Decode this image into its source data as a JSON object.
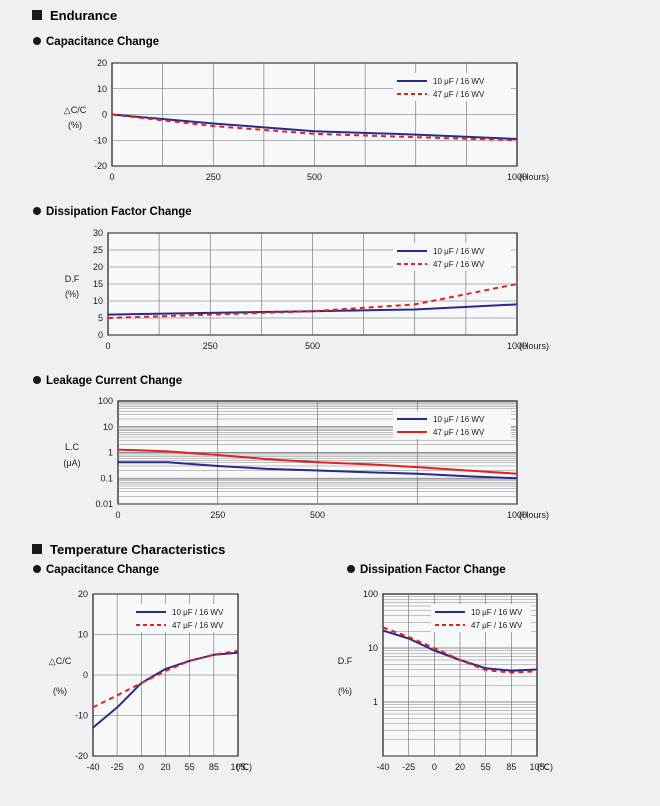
{
  "sections": {
    "endurance": "Endurance",
    "temperature": "Temperature Characteristics"
  },
  "colors": {
    "series1": "#2a2a8c",
    "series2": "#e0231e",
    "grid": "#6a6a6a",
    "bg": "#eef0f3"
  },
  "chart_data": [
    {
      "id": "end-cap",
      "type": "line",
      "title": "Capacitance Change",
      "ylabel": [
        "△C/C",
        "(%)"
      ],
      "xunit": "(Hours)",
      "x_ticks": [
        0,
        250,
        500,
        1000
      ],
      "y_ticks": [
        20,
        10,
        0,
        -10,
        -20
      ],
      "ylim": [
        -20,
        20
      ],
      "legend_placement": "top-right",
      "series": [
        {
          "name": "10 μF / 16 WV",
          "style": "solid",
          "x": [
            0,
            250,
            500,
            750,
            1000
          ],
          "y": [
            0,
            -3.5,
            -6.5,
            -7.8,
            -9.5
          ]
        },
        {
          "name": "47 μF / 16 WV",
          "style": "dashed",
          "x": [
            0,
            250,
            500,
            750,
            1000
          ],
          "y": [
            0,
            -4.5,
            -7.5,
            -8.8,
            -10
          ]
        }
      ]
    },
    {
      "id": "end-df",
      "type": "line",
      "title": "Dissipation Factor Change",
      "ylabel": [
        "D.F",
        "(%)"
      ],
      "xunit": "(Hours)",
      "x_ticks": [
        0,
        250,
        500,
        1000
      ],
      "y_ticks": [
        30,
        25,
        20,
        15,
        10,
        5,
        0
      ],
      "ylim": [
        0,
        30
      ],
      "legend_placement": "top-right",
      "series": [
        {
          "name": "10 μF / 16 WV",
          "style": "solid",
          "x": [
            0,
            250,
            500,
            750,
            1000
          ],
          "y": [
            6,
            6.5,
            7,
            7.5,
            9
          ]
        },
        {
          "name": "47 μF / 16 WV",
          "style": "dashed",
          "x": [
            0,
            250,
            500,
            750,
            1000
          ],
          "y": [
            5,
            6,
            7,
            9,
            15
          ]
        }
      ]
    },
    {
      "id": "end-lc",
      "type": "line",
      "title": "Leakage Current Change",
      "ylabel": [
        "L.C",
        "(μA)"
      ],
      "xunit": "(Hours)",
      "x_ticks": [
        0,
        250,
        500,
        1000
      ],
      "y_ticks": [
        "100",
        "10",
        "1",
        "0.1",
        "0.01"
      ],
      "ylim": [
        0.01,
        100
      ],
      "yscale": "log",
      "legend_placement": "top-right",
      "series": [
        {
          "name": "10 μF / 16 WV",
          "style": "solid",
          "x": [
            0,
            125,
            250,
            375,
            500,
            625,
            750,
            875,
            1000
          ],
          "y": [
            0.42,
            0.42,
            0.3,
            0.23,
            0.2,
            0.17,
            0.15,
            0.12,
            0.1
          ]
        },
        {
          "name": "47 μF / 16 WV",
          "style": "solid",
          "x": [
            0,
            125,
            250,
            375,
            500,
            625,
            750,
            875,
            1000
          ],
          "y": [
            1.3,
            1.1,
            0.8,
            0.55,
            0.42,
            0.35,
            0.27,
            0.2,
            0.15
          ]
        }
      ]
    },
    {
      "id": "temp-cap",
      "type": "line",
      "title": "Capacitance Change",
      "ylabel": [
        "△C/C",
        "(%)"
      ],
      "xunit": "(℃)",
      "x_ticks": [
        -40,
        -25,
        0,
        20,
        55,
        85,
        105
      ],
      "y_ticks": [
        20,
        10,
        0,
        -10,
        -20
      ],
      "ylim": [
        -20,
        20
      ],
      "legend_placement": "top-right",
      "series": [
        {
          "name": "10 μF / 16 WV",
          "style": "solid",
          "x": [
            -40,
            -25,
            0,
            20,
            55,
            85,
            105
          ],
          "y": [
            -13,
            -8,
            -2,
            1.5,
            3.5,
            5,
            5.5
          ]
        },
        {
          "name": "47 μF / 16 WV",
          "style": "dashed",
          "x": [
            -40,
            -25,
            0,
            20,
            55,
            85,
            105
          ],
          "y": [
            -8,
            -5,
            -2,
            1,
            3.5,
            5,
            6
          ]
        }
      ]
    },
    {
      "id": "temp-df",
      "type": "line",
      "title": "Dissipation Factor Change",
      "ylabel": [
        "D.F",
        "(%)"
      ],
      "xunit": "(℃)",
      "x_ticks": [
        -40,
        -25,
        0,
        20,
        55,
        85,
        105
      ],
      "y_ticks": [
        "100",
        "10",
        "1"
      ],
      "ylim": [
        0.1,
        100
      ],
      "yscale": "log",
      "legend_placement": "top-right",
      "series": [
        {
          "name": "10 μF / 16 WV",
          "style": "solid",
          "x": [
            -40,
            -25,
            0,
            20,
            55,
            85,
            105
          ],
          "y": [
            21,
            15,
            9,
            6,
            4.2,
            3.8,
            4
          ]
        },
        {
          "name": "47 μF / 16 WV",
          "style": "dashed",
          "x": [
            -40,
            -25,
            0,
            20,
            55,
            85,
            105
          ],
          "y": [
            24,
            16,
            10,
            6,
            3.9,
            3.5,
            3.7
          ]
        }
      ]
    }
  ]
}
